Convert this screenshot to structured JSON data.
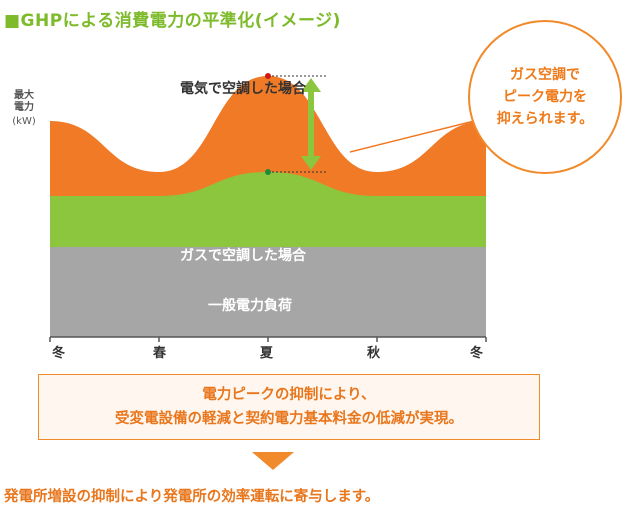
{
  "title": "■GHPによる消費電力の平準化(イメージ)",
  "y_axis": {
    "label": "最大電力",
    "unit": "(kW)"
  },
  "labels": {
    "electric_ac": "電気で空調した場合",
    "gas_ac": "ガスで空調した場合",
    "general_load": "一般電力負荷"
  },
  "callout": "ガス空調で\nピーク電力を\n抑えられます。",
  "summary": "電力ピークの抑制により、\n受変電設備の軽減と契約電力基本料金の低減が実現。",
  "conclusion": "発電所増設の抑制により発電所の効率運転に寄与します。",
  "colors": {
    "orange": "#f07a26",
    "green": "#8cc63f",
    "gray": "#a6a6a6",
    "accent_text": "#e8761c",
    "peak_arrow": "#8cc63f"
  },
  "chart_data": {
    "type": "area",
    "x": [
      "冬",
      "春",
      "夏",
      "秋",
      "冬"
    ],
    "xlabel": "",
    "ylabel": "最大電力 (kW)",
    "series": [
      {
        "name": "一般電力負荷",
        "values": [
          3,
          3,
          3,
          3,
          3
        ]
      },
      {
        "name": "ガスで空調した場合",
        "values": [
          4.7,
          4.7,
          5.5,
          4.7,
          4.7
        ]
      },
      {
        "name": "電気で空調した場合",
        "values": [
          7.2,
          5.5,
          8.7,
          5.5,
          7.2
        ]
      }
    ],
    "ylim": [
      0,
      10
    ],
    "grid": false,
    "legend": "none"
  }
}
